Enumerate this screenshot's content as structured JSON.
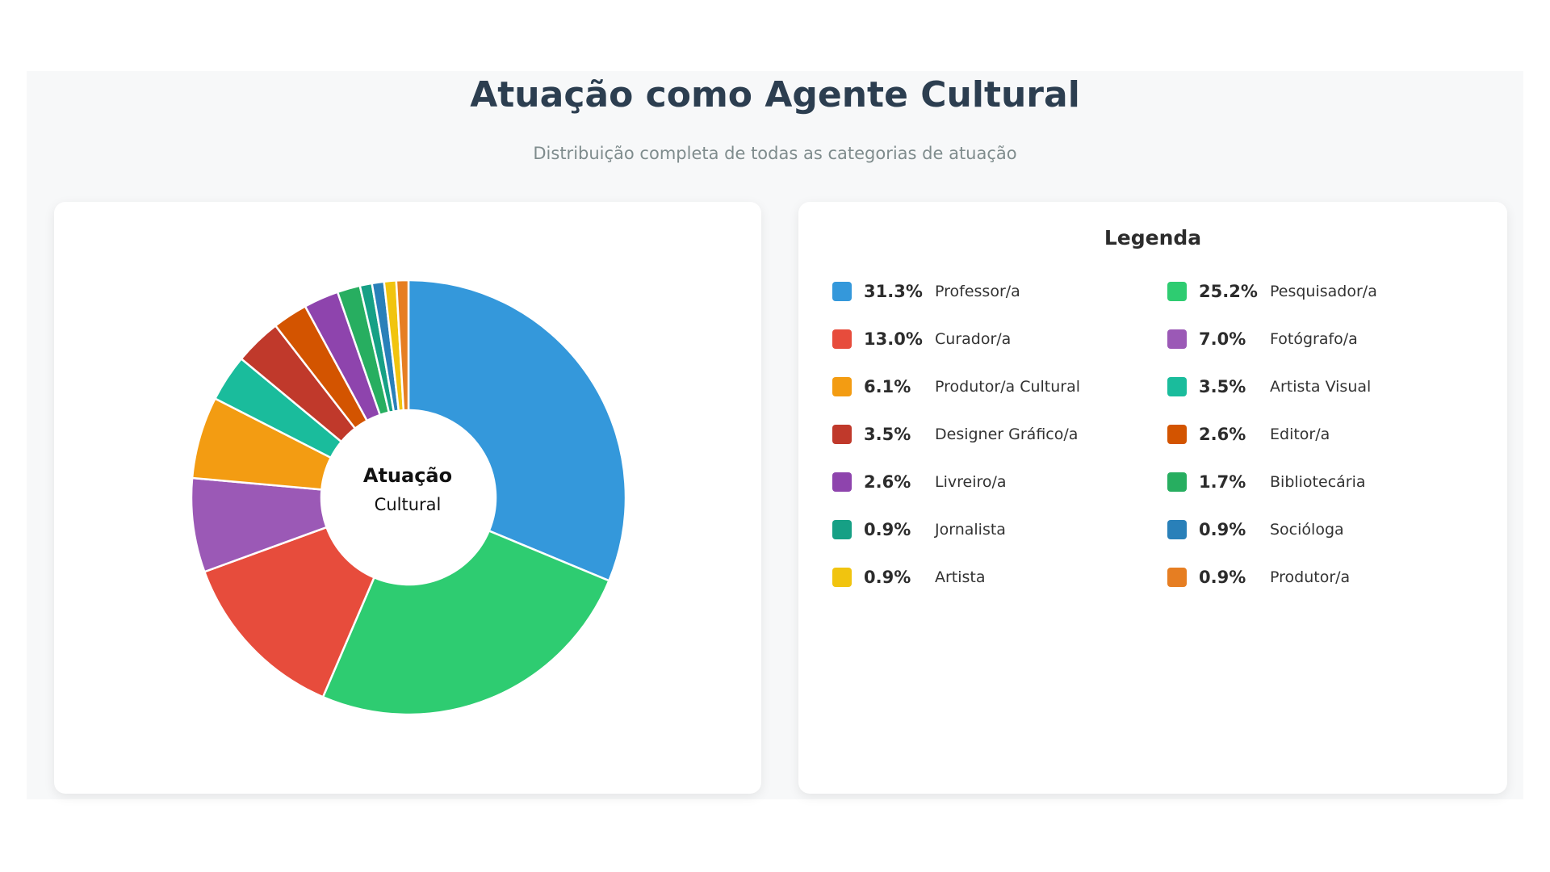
{
  "header": {
    "title": "Atuação como Agente Cultural",
    "subtitle": "Distribuição completa de todas as categorias de atuação"
  },
  "chart_data": {
    "type": "pie",
    "donut": true,
    "center_label": [
      "Atuação",
      "Cultural"
    ],
    "legend_title": "Legenda",
    "legend_placement": "right",
    "categories": [
      "Professor/a",
      "Pesquisador/a",
      "Curador/a",
      "Fotógrafo/a",
      "Produtor/a Cultural",
      "Artista Visual",
      "Designer Gráfico/a",
      "Editor/a",
      "Livreiro/a",
      "Bibliotecária",
      "Jornalista",
      "Socióloga",
      "Artista",
      "Produtor/a"
    ],
    "values": [
      31.3,
      25.2,
      13.0,
      7.0,
      6.1,
      3.5,
      3.5,
      2.6,
      2.6,
      1.7,
      0.9,
      0.9,
      0.9,
      0.9
    ],
    "labels": [
      "31.3%",
      "25.2%",
      "13.0%",
      "7.0%",
      "6.1%",
      "3.5%",
      "3.5%",
      "2.6%",
      "2.6%",
      "1.7%",
      "0.9%",
      "0.9%",
      "0.9%",
      "0.9%"
    ],
    "colors": [
      "#3498db",
      "#2ecc71",
      "#e74c3c",
      "#9b59b6",
      "#f39c12",
      "#1abc9c",
      "#c0392b",
      "#d35400",
      "#8e44ad",
      "#27ae60",
      "#16a085",
      "#2980b9",
      "#f1c40f",
      "#e67e22"
    ]
  }
}
